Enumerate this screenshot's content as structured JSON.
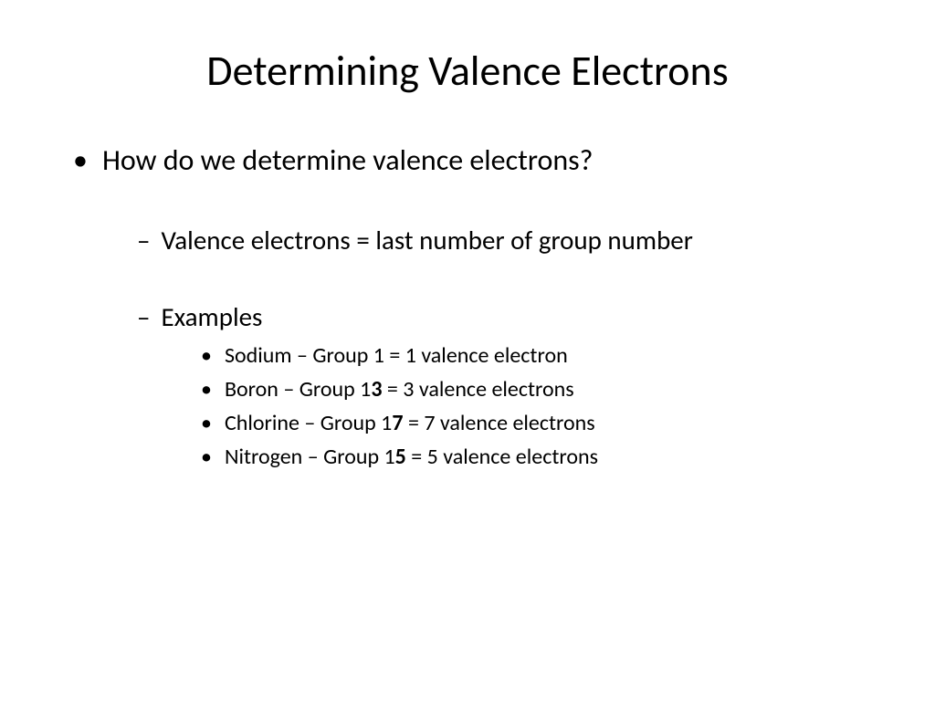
{
  "slide": {
    "title": "Determining Valence Electrons",
    "question": "How do we determine valence electrons?",
    "rule": "Valence electrons = last number of group number",
    "examples_label": "Examples",
    "examples": [
      {
        "pre": "Sodium – Group 1 = 1 valence electron",
        "bold": "",
        "post": ""
      },
      {
        "pre": "Boron – Group 1",
        "bold": "3",
        "post": " = 3 valence electrons"
      },
      {
        "pre": "Chlorine – Group 1",
        "bold": "7",
        "post": " = 7 valence electrons"
      },
      {
        "pre": "Nitrogen – Group 1",
        "bold": "5",
        "post": " = 5 valence electrons"
      }
    ]
  },
  "style": {
    "background": "#ffffff",
    "text_color": "#000000",
    "title_fontsize": 46,
    "l1_fontsize": 32,
    "l2_fontsize": 29,
    "l3_fontsize": 24,
    "font_family": "Calibri"
  }
}
